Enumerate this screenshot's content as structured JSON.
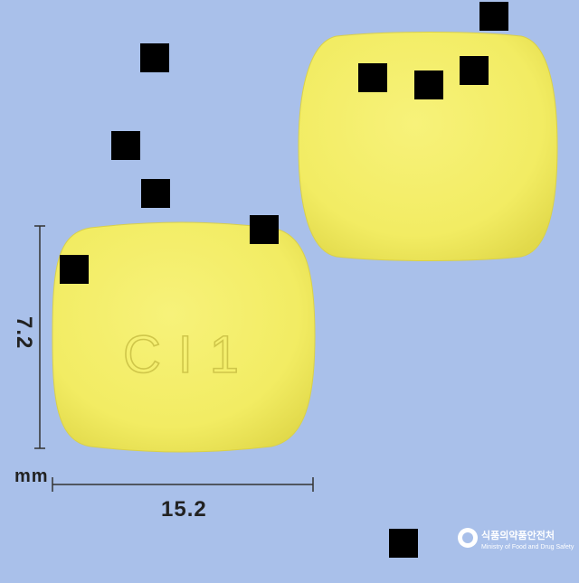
{
  "image": {
    "background_color": "#a9c0ea",
    "pill_color": "#f2ec63"
  },
  "pill": {
    "imprint": "C I 1",
    "shape": "rounded-rectangle tablet",
    "color_name": "yellow"
  },
  "dimensions": {
    "height_value": "7.2",
    "width_value": "15.2",
    "unit": "mm"
  },
  "watermark": {
    "korean_name": "식품의약품안전처",
    "english_name": "Ministry of Food and Drug Safety"
  },
  "redactions": [
    {
      "name": "redaction-1"
    },
    {
      "name": "redaction-2"
    },
    {
      "name": "redaction-3"
    },
    {
      "name": "redaction-4"
    },
    {
      "name": "redaction-5"
    },
    {
      "name": "redaction-6"
    },
    {
      "name": "redaction-7"
    },
    {
      "name": "redaction-8"
    },
    {
      "name": "redaction-9"
    },
    {
      "name": "redaction-10"
    },
    {
      "name": "redaction-11"
    }
  ]
}
